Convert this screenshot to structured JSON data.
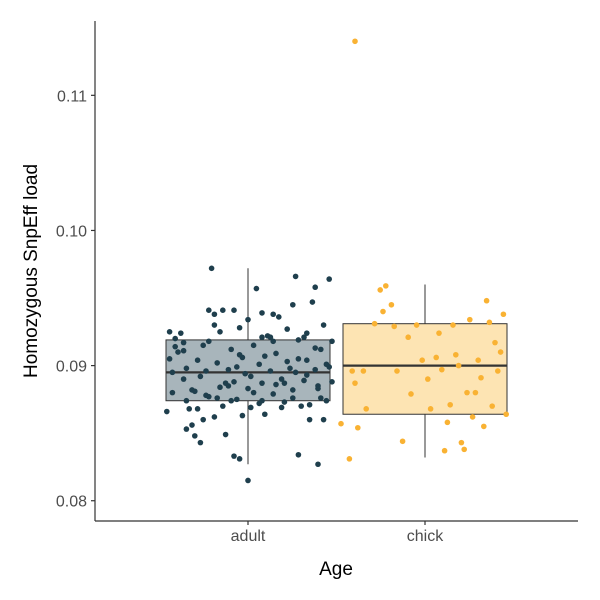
{
  "chart_data": {
    "type": "box",
    "xlabel": "Age",
    "ylabel": "Homozygous SnpEff load",
    "categories": [
      "adult",
      "chick"
    ],
    "ylim": [
      0.0785,
      0.1155
    ],
    "yticks": [
      0.08,
      0.09,
      0.1,
      0.11
    ],
    "ytick_labels": [
      "0.08",
      "0.09",
      "0.10",
      "0.11"
    ],
    "grid": false,
    "colors": {
      "adult": "#1f3f4d",
      "chick": "#f9b233"
    },
    "box_fill": {
      "adult": "#a8b5bb",
      "chick": "#fde4b3"
    },
    "boxes": [
      {
        "category": "adult",
        "q1": 0.0874,
        "median": 0.0895,
        "q3": 0.0919,
        "whisker_low": 0.0827,
        "whisker_high": 0.0972
      },
      {
        "category": "chick",
        "q1": 0.0864,
        "median": 0.09,
        "q3": 0.0931,
        "whisker_low": 0.0832,
        "whisker_high": 0.096
      }
    ],
    "points": {
      "adult": [
        [
          -0.29,
          0.0866
        ],
        [
          -0.27,
          0.088
        ],
        [
          -0.25,
          0.091
        ],
        [
          -0.24,
          0.0924
        ],
        [
          -0.23,
          0.089
        ],
        [
          -0.22,
          0.0874
        ],
        [
          -0.21,
          0.0868
        ],
        [
          -0.2,
          0.0856
        ],
        [
          -0.19,
          0.0848
        ],
        [
          -0.18,
          0.0904
        ],
        [
          -0.17,
          0.0892
        ],
        [
          -0.16,
          0.086
        ],
        [
          -0.15,
          0.0878
        ],
        [
          -0.14,
          0.0918
        ],
        [
          -0.13,
          0.0972
        ],
        [
          -0.12,
          0.0938
        ],
        [
          -0.11,
          0.0902
        ],
        [
          -0.1,
          0.0884
        ],
        [
          -0.09,
          0.087
        ],
        [
          -0.08,
          0.0849
        ],
        [
          -0.07,
          0.0897
        ],
        [
          -0.06,
          0.0912
        ],
        [
          -0.05,
          0.0888
        ],
        [
          -0.04,
          0.0875
        ],
        [
          -0.03,
          0.0928
        ],
        [
          -0.02,
          0.0906
        ],
        [
          -0.01,
          0.0894
        ],
        [
          0.0,
          0.0883
        ],
        [
          0.01,
          0.0869
        ],
        [
          0.02,
          0.0915
        ],
        [
          0.03,
          0.0957
        ],
        [
          0.04,
          0.0901
        ],
        [
          0.05,
          0.0887
        ],
        [
          0.06,
          0.0864
        ],
        [
          0.07,
          0.0922
        ],
        [
          0.08,
          0.0896
        ],
        [
          0.09,
          0.0879
        ],
        [
          0.1,
          0.0909
        ],
        [
          0.11,
          0.0936
        ],
        [
          0.12,
          0.089
        ],
        [
          0.13,
          0.0873
        ],
        [
          0.14,
          0.0927
        ],
        [
          0.15,
          0.0898
        ],
        [
          0.16,
          0.0882
        ],
        [
          0.17,
          0.0966
        ],
        [
          0.18,
          0.0905
        ],
        [
          0.19,
          0.087
        ],
        [
          0.2,
          0.0921
        ],
        [
          0.21,
          0.0893
        ],
        [
          0.22,
          0.086
        ],
        [
          0.23,
          0.0947
        ],
        [
          0.24,
          0.0913
        ],
        [
          0.25,
          0.0885
        ],
        [
          0.26,
          0.0876
        ],
        [
          0.27,
          0.093
        ],
        [
          0.28,
          0.0901
        ],
        [
          0.29,
          0.0964
        ],
        [
          0.3,
          0.0888
        ],
        [
          -0.28,
          0.0905
        ],
        [
          -0.26,
          0.092
        ],
        [
          -0.22,
          0.0898
        ],
        [
          -0.2,
          0.0882
        ],
        [
          -0.18,
          0.0868
        ],
        [
          -0.16,
          0.0915
        ],
        [
          -0.14,
          0.0877
        ],
        [
          -0.12,
          0.0862
        ],
        [
          -0.1,
          0.0925
        ],
        [
          -0.08,
          0.0887
        ],
        [
          -0.06,
          0.0874
        ],
        [
          -0.04,
          0.0899
        ],
        [
          -0.02,
          0.0863
        ],
        [
          0.0,
          0.0934
        ],
        [
          0.02,
          0.088
        ],
        [
          0.04,
          0.0872
        ],
        [
          0.06,
          0.0907
        ],
        [
          0.08,
          0.0921
        ],
        [
          0.1,
          0.0886
        ],
        [
          0.12,
          0.0869
        ],
        [
          0.14,
          0.0903
        ],
        [
          0.16,
          0.0876
        ],
        [
          0.18,
          0.0919
        ],
        [
          0.2,
          0.0889
        ],
        [
          0.22,
          0.0871
        ],
        [
          0.24,
          0.0897
        ],
        [
          0.26,
          0.0912
        ],
        [
          0.28,
          0.0874
        ],
        [
          -0.27,
          0.0895
        ],
        [
          -0.23,
          0.0911
        ],
        [
          -0.19,
          0.0881
        ],
        [
          -0.15,
          0.0896
        ],
        [
          -0.11,
          0.0876
        ],
        [
          -0.07,
          0.0885
        ],
        [
          -0.03,
          0.0908
        ],
        [
          0.01,
          0.0892
        ],
        [
          0.05,
          0.0874
        ],
        [
          0.09,
          0.0918
        ],
        [
          0.13,
          0.0887
        ],
        [
          0.17,
          0.0895
        ],
        [
          0.21,
          0.0904
        ],
        [
          0.25,
          0.0883
        ],
        [
          0.29,
          0.0899
        ],
        [
          -0.05,
          0.0833
        ],
        [
          -0.03,
          0.0831
        ],
        [
          0.18,
          0.0834
        ],
        [
          0.25,
          0.0827
        ],
        [
          0.0,
          0.0815
        ],
        [
          -0.17,
          0.0843
        ],
        [
          -0.22,
          0.0853
        ],
        [
          0.27,
          0.086
        ],
        [
          -0.28,
          0.0925
        ],
        [
          0.24,
          0.0958
        ],
        [
          -0.26,
          0.0914
        ],
        [
          0.3,
          0.0918
        ],
        [
          -0.14,
          0.0941
        ],
        [
          0.09,
          0.0938
        ],
        [
          -0.09,
          0.0941
        ],
        [
          0.05,
          0.0939
        ],
        [
          -0.12,
          0.093
        ],
        [
          -0.05,
          0.0941
        ],
        [
          0.05,
          0.0921
        ],
        [
          0.16,
          0.0945
        ],
        [
          -0.23,
          0.0917
        ],
        [
          0.21,
          0.0924
        ]
      ],
      "chick": [
        [
          -0.3,
          0.0857
        ],
        [
          -0.27,
          0.0831
        ],
        [
          -0.26,
          0.0896
        ],
        [
          -0.24,
          0.0854
        ],
        [
          -0.22,
          0.0896
        ],
        [
          -0.21,
          0.0868
        ],
        [
          -0.18,
          0.0931
        ],
        [
          -0.16,
          0.0956
        ],
        [
          -0.14,
          0.0959
        ],
        [
          -0.12,
          0.0945
        ],
        [
          -0.11,
          0.0929
        ],
        [
          -0.1,
          0.0896
        ],
        [
          -0.08,
          0.0844
        ],
        [
          -0.06,
          0.0921
        ],
        [
          -0.05,
          0.0879
        ],
        [
          -0.03,
          0.093
        ],
        [
          -0.01,
          0.0904
        ],
        [
          0.01,
          0.089
        ],
        [
          0.02,
          0.0868
        ],
        [
          0.04,
          0.0906
        ],
        [
          0.05,
          0.0924
        ],
        [
          0.06,
          0.0897
        ],
        [
          0.07,
          0.0837
        ],
        [
          0.09,
          0.0871
        ],
        [
          0.1,
          0.093
        ],
        [
          0.11,
          0.0908
        ],
        [
          0.12,
          0.09
        ],
        [
          0.14,
          0.0838
        ],
        [
          0.15,
          0.088
        ],
        [
          0.16,
          0.0934
        ],
        [
          0.17,
          0.0862
        ],
        [
          0.18,
          0.088
        ],
        [
          0.19,
          0.0904
        ],
        [
          0.2,
          0.0891
        ],
        [
          0.21,
          0.0855
        ],
        [
          0.22,
          0.0948
        ],
        [
          0.23,
          0.0932
        ],
        [
          0.24,
          0.087
        ],
        [
          0.25,
          0.0917
        ],
        [
          0.26,
          0.0896
        ],
        [
          0.27,
          0.091
        ],
        [
          0.28,
          0.0938
        ],
        [
          0.29,
          0.0864
        ],
        [
          0.13,
          0.0843
        ],
        [
          -0.15,
          0.094
        ],
        [
          -0.25,
          0.0887
        ],
        [
          0.08,
          0.0858
        ],
        [
          -0.25,
          0.114
        ]
      ]
    }
  }
}
